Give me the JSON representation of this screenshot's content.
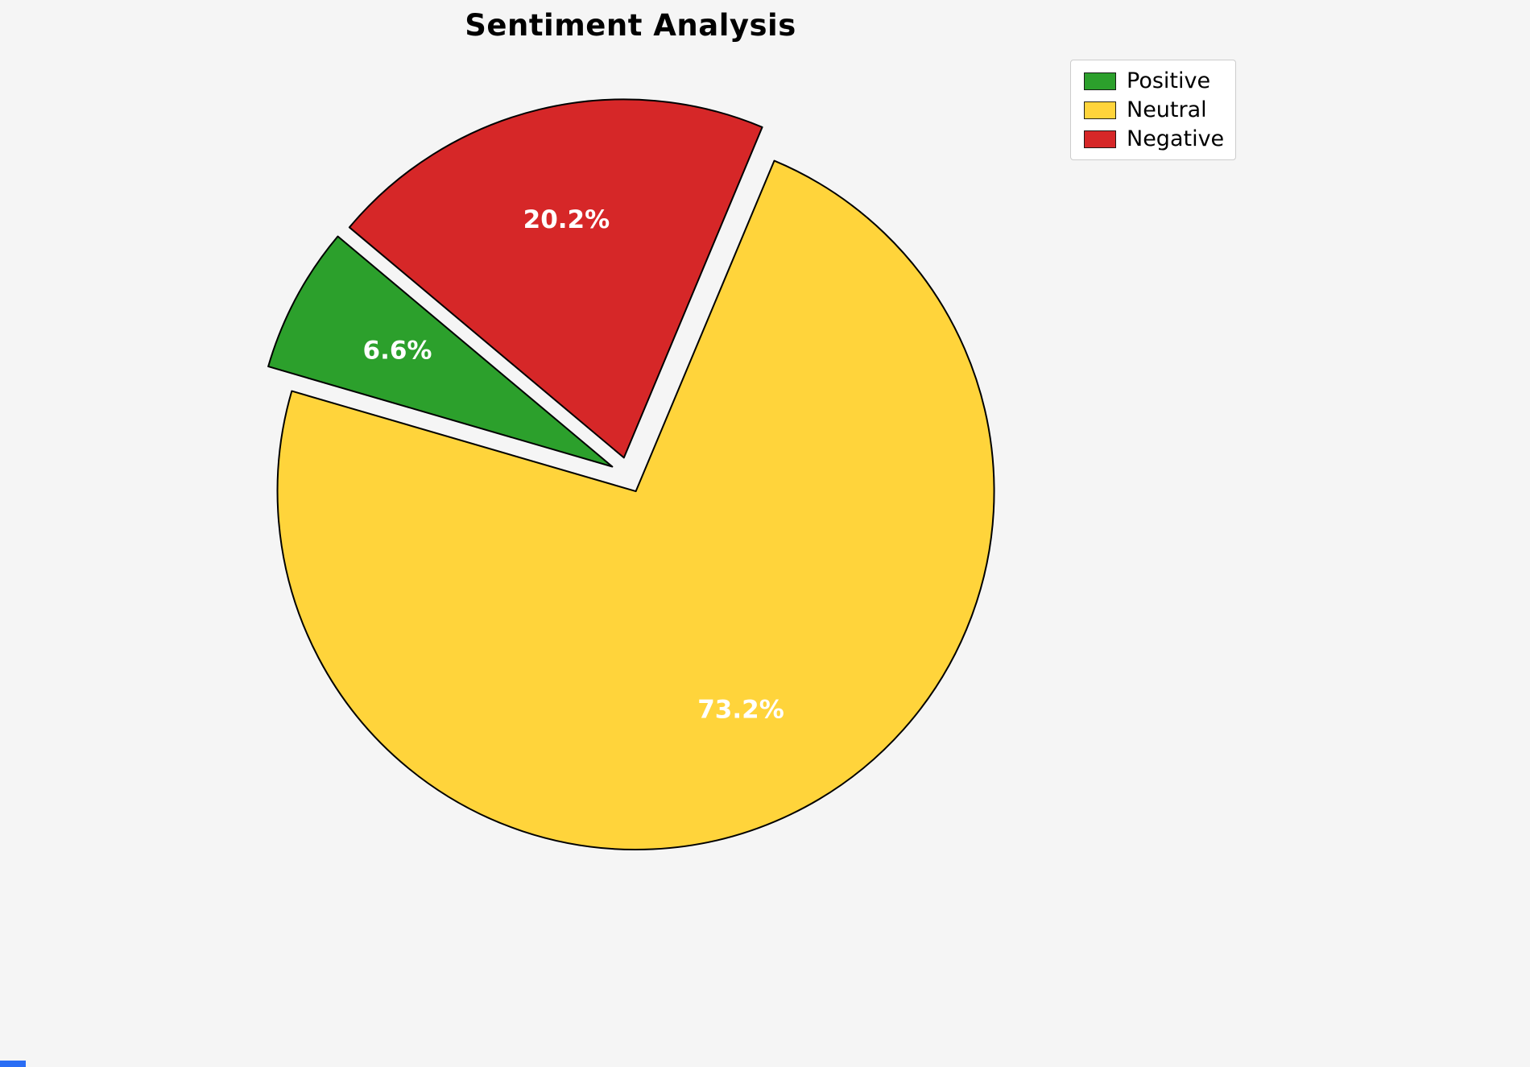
{
  "page": {
    "background": "#f5f5f5"
  },
  "chart_data": {
    "type": "pie",
    "title": "Sentiment Analysis",
    "labels": [
      "Positive",
      "Neutral",
      "Negative"
    ],
    "values": [
      6.6,
      73.2,
      20.2
    ],
    "value_labels": [
      "6.6%",
      "73.2%",
      "20.2%"
    ],
    "colors": [
      "#2ca02c",
      "#ffd43b",
      "#d62728"
    ],
    "explode": [
      0.05,
      0.05,
      0.05
    ],
    "start_angle": 140,
    "direction": "counterclockwise",
    "edge_color": "#000000",
    "pct_label_color": "#ffffff",
    "legend": {
      "position": "upper right",
      "items": [
        "Positive",
        "Neutral",
        "Negative"
      ]
    }
  }
}
